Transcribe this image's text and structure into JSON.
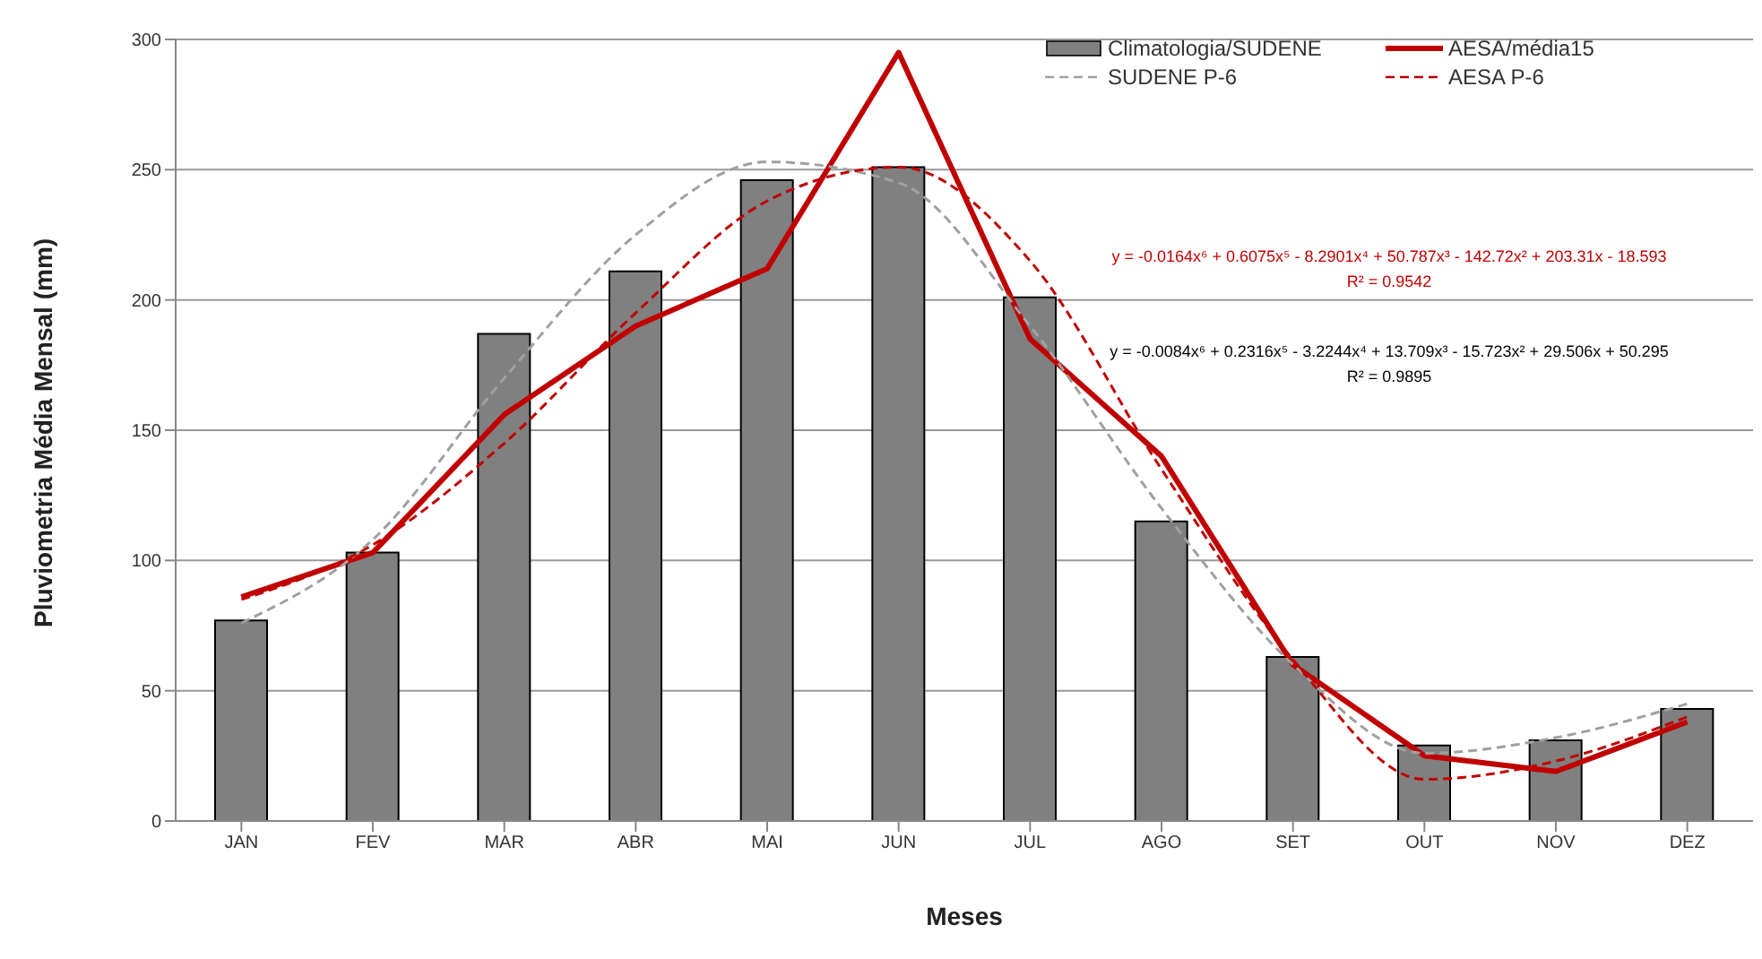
{
  "chart_data": {
    "type": "bar",
    "xlabel": "Meses",
    "ylabel": "Pluviometria Média Mensal (mm)",
    "categories": [
      "JAN",
      "FEV",
      "MAR",
      "ABR",
      "MAI",
      "JUN",
      "JUL",
      "AGO",
      "SET",
      "OUT",
      "NOV",
      "DEZ"
    ],
    "series": [
      {
        "name": "Climatologia/SUDENE",
        "color": "#808080",
        "values": [
          77,
          103,
          187,
          211,
          246,
          251,
          201,
          115,
          63,
          29,
          31,
          43
        ]
      },
      {
        "name": "AESA/média15",
        "type": "line",
        "color": "#c00000",
        "line_style": "solid",
        "values": [
          86,
          103,
          156,
          190,
          212,
          295,
          185,
          140,
          60,
          25,
          19,
          38
        ]
      },
      {
        "name": "SUDENE P-6",
        "type": "line",
        "color": "#a0a0a0",
        "line_style": "dashed",
        "values": [
          76,
          108,
          170,
          225,
          253,
          245,
          190,
          120,
          60,
          26,
          32,
          45
        ]
      },
      {
        "name": "AESA P-6",
        "type": "line",
        "color": "#c00000",
        "line_style": "dashed",
        "values": [
          85,
          106,
          145,
          195,
          238,
          251,
          215,
          135,
          62,
          16,
          23,
          40
        ]
      }
    ],
    "annotations": [
      "y = -0.0164x⁶ + 0.6075x⁵ - 8.2901x⁴ + 50.787x³ - 142.72x² + 203.31x - 18.593",
      "R² = 0.9542",
      "y = -0.0084x⁶ + 0.2316x⁵ - 3.2244x⁴ + 13.709x³ - 15.723x² + 29.506x + 50.295",
      "R² = 0.9895"
    ],
    "ylim": [
      0,
      300
    ],
    "yticks": [
      0,
      50,
      100,
      150,
      200,
      250,
      300
    ],
    "grid": "y",
    "legend": "top right",
    "marker": "none"
  }
}
